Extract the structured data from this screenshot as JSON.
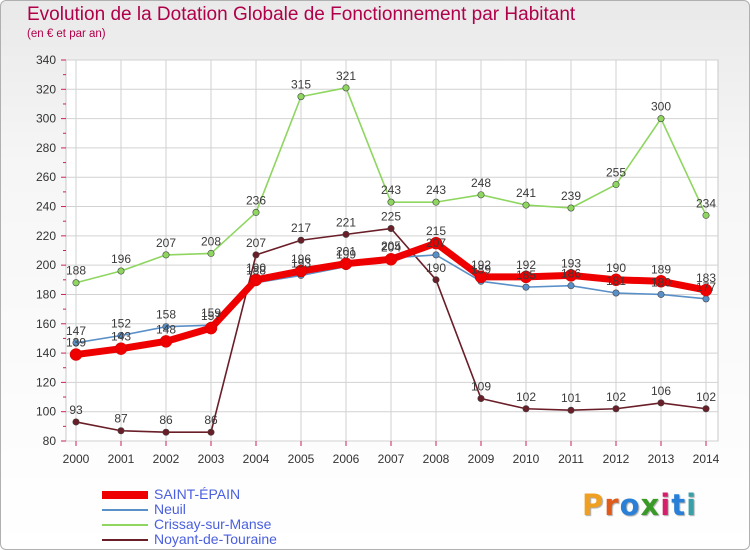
{
  "title": "Evolution de la Dotation Globale de Fonctionnement par Habitant",
  "subtitle": "(en € et par an)",
  "logo": {
    "text": "Proxiti",
    "letters": [
      "P",
      "r",
      "o",
      "x",
      "i",
      "t",
      "i"
    ],
    "colors": [
      "#f0a020",
      "#e05a1a",
      "#2a7fd6",
      "#3a9a28",
      "#d61f6a",
      "#2a7fd6",
      "#3aa0a8"
    ]
  },
  "chart_data": {
    "type": "line",
    "title": "Evolution de la Dotation Globale de Fonctionnement par Habitant",
    "subtitle": "(en € et par an)",
    "xlabel": "",
    "ylabel": "",
    "x": [
      "2000",
      "2001",
      "2002",
      "2003",
      "2004",
      "2005",
      "2006",
      "2007",
      "2008",
      "2009",
      "2010",
      "2011",
      "2012",
      "2013",
      "2014"
    ],
    "ylim": [
      80,
      340
    ],
    "yticks": [
      "80",
      "100",
      "120",
      "140",
      "160",
      "180",
      "200",
      "220",
      "240",
      "260",
      "280",
      "300",
      "320",
      "340"
    ],
    "grid": true,
    "legend_position": "bottom-left",
    "series": [
      {
        "name": "Noyant-de-Touraine",
        "color": "#6a1e28",
        "values": [
          93,
          87,
          86,
          86,
          207,
          217,
          221,
          225,
          190,
          109,
          102,
          101,
          102,
          106,
          102
        ],
        "labels": [
          "93",
          "87",
          "86",
          "86",
          "207",
          "217",
          "221",
          "225",
          "190",
          "109",
          "102",
          "101",
          "102",
          "106",
          "102"
        ]
      },
      {
        "name": "Crissay-sur-Manse",
        "color": "#8ed660",
        "values": [
          188,
          196,
          207,
          208,
          236,
          315,
          321,
          243,
          243,
          248,
          241,
          239,
          255,
          300,
          234
        ],
        "labels": [
          "188",
          "196",
          "207",
          "208",
          "236",
          "315",
          "321",
          "243",
          "243",
          "248",
          "241",
          "239",
          "255",
          "300",
          "234"
        ]
      },
      {
        "name": "Neuil",
        "color": "#5a90c8",
        "values": [
          147,
          152,
          158,
          159,
          188,
          193,
          199,
          205,
          207,
          189,
          185,
          186,
          181,
          180,
          177
        ],
        "labels": [
          "147",
          "152",
          "158",
          "159",
          "188",
          "193",
          "199",
          "205",
          "207",
          "189",
          "185",
          "186",
          "181",
          "180",
          "177"
        ]
      },
      {
        "name": "SAINT-ÉPAIN",
        "color": "#ee0000",
        "values": [
          139,
          143,
          148,
          157,
          190,
          196,
          201,
          204,
          215,
          192,
          192,
          193,
          190,
          189,
          183
        ],
        "labels": [
          "139",
          "143",
          "148",
          "157",
          "190",
          "196",
          "201",
          "204",
          "215",
          "192",
          "192",
          "193",
          "190",
          "189",
          "183"
        ]
      }
    ],
    "legend": [
      {
        "name": "SAINT-ÉPAIN",
        "color": "#ee0000"
      },
      {
        "name": "Neuil",
        "color": "#5a90c8"
      },
      {
        "name": "Crissay-sur-Manse",
        "color": "#8ed660"
      },
      {
        "name": "Noyant-de-Touraine",
        "color": "#6a1e28"
      }
    ]
  }
}
